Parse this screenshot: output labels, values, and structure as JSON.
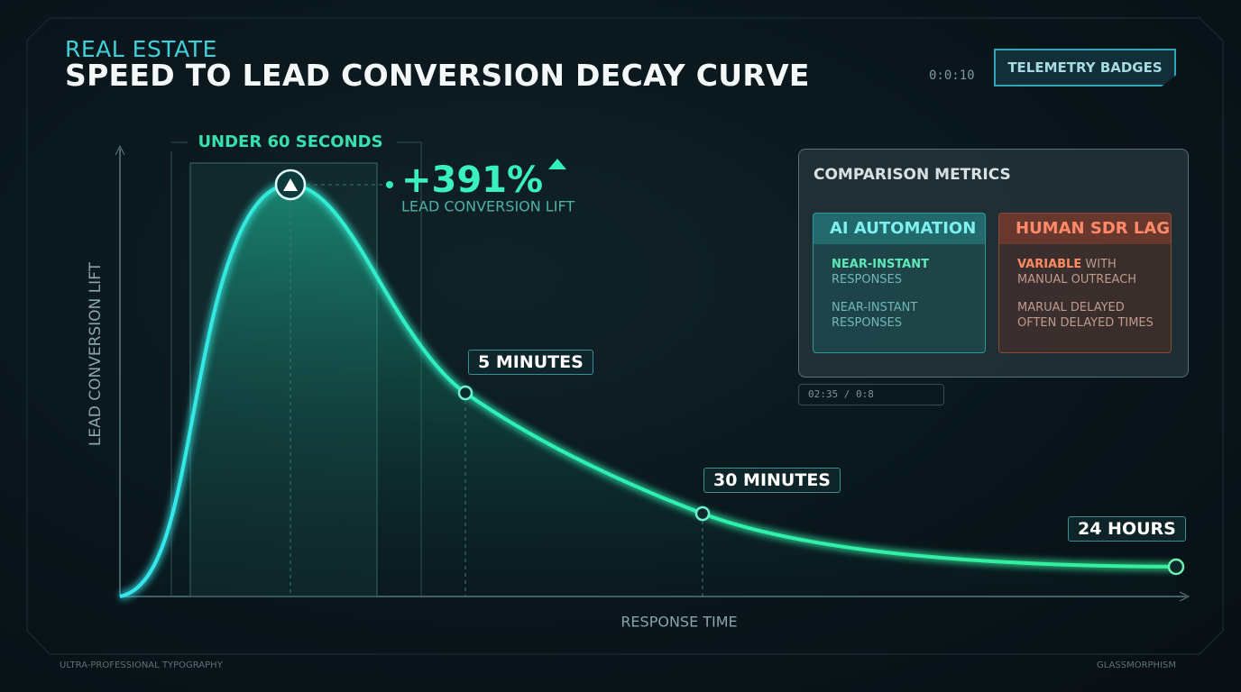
{
  "header": {
    "category": "REAL ESTATE",
    "title": "SPEED TO LEAD CONVERSION DECAY CURVE"
  },
  "telemetry": {
    "timer": "0:0:10",
    "badge": "TELEMETRY BADGES"
  },
  "chart": {
    "window_label": "UNDER 60 SECONDS",
    "lift_value": "+391%",
    "lift_label": "LEAD CONVERSION LIFT",
    "y_axis_label": "LEAD CONVERSION LIFT",
    "x_axis_label": "RESPONSE TIME",
    "markers": [
      "5 MINUTES",
      "30 MINUTES",
      "24 HOURS"
    ]
  },
  "panel": {
    "title": "COMPARISON METRICS",
    "cards": [
      {
        "title": "AI AUTOMATION",
        "items": [
          {
            "strong": "NEAR-INSTANT",
            "text": "RESPONSES"
          },
          {
            "text": "NEAR-INSTANT RESPONSES"
          }
        ]
      },
      {
        "title": "HUMAN SDR LAG",
        "items": [
          {
            "strong": "VARIABLE",
            "text": "WITH MANUAL OUTREACH"
          },
          {
            "text": "MARUAL DELAYED OFTEN DELAYED TIMES"
          }
        ]
      }
    ],
    "status": "02:35 / 0:8"
  },
  "footer": {
    "left": "ULTRA-PROFESSIONAL TYPOGRAPHY",
    "right": "GLASSMORPHISM"
  }
}
